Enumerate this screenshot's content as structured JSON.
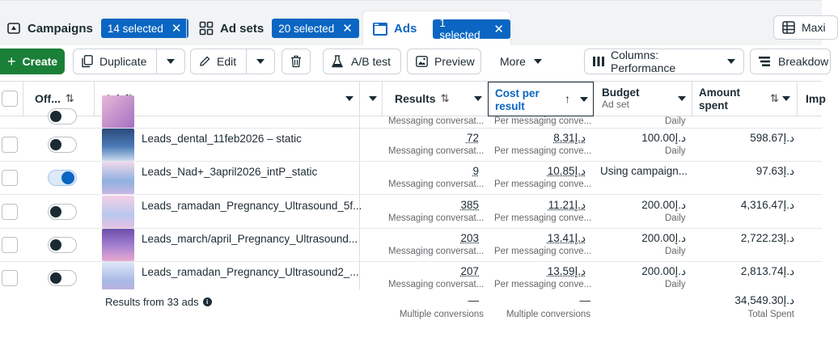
{
  "tabs": {
    "campaigns": {
      "label": "Campaigns",
      "pill": "14 selected"
    },
    "adsets": {
      "label": "Ad sets",
      "pill": "20 selected"
    },
    "ads": {
      "label": "Ads",
      "pill": "1 selected"
    },
    "maxi_label": "Maxi"
  },
  "toolbar": {
    "create": "Create",
    "duplicate": "Duplicate",
    "edit": "Edit",
    "ab_test": "A/B test",
    "preview": "Preview",
    "more": "More",
    "columns": "Columns: Performance",
    "breakdown": "Breakdow"
  },
  "columns": {
    "off": "Off...",
    "ad": "Ad",
    "results": "Results",
    "cost_per_result": "Cost per result",
    "budget": "Budget",
    "budget_sub": "Ad set",
    "amount_spent": "Amount spent",
    "imp": "Imp"
  },
  "partial_row": {
    "results_sub": "Messaging conversat...",
    "cost_sub": "Per messaging conve...",
    "budget_sub": "Daily"
  },
  "rows": [
    {
      "name": "Leads_dental_11feb2026 – static",
      "on": false,
      "results": "72",
      "results_sub": "Messaging conversat...",
      "cost": "د.إ8.31",
      "cost_sub": "Per messaging conve...",
      "budget": "د.إ100.00",
      "budget_sub": "Daily",
      "spent": "د.إ598.67"
    },
    {
      "name": "Leads_Nad+_3april2026_intP_static",
      "on": true,
      "results": "9",
      "results_sub": "Messaging conversat...",
      "cost": "د.إ10.85",
      "cost_sub": "Per messaging conve...",
      "budget": "Using campaign...",
      "budget_sub": "",
      "spent": "د.إ97.63"
    },
    {
      "name": "Leads_ramadan_Pregnancy_Ultrasound_5f...",
      "on": false,
      "results": "385",
      "results_sub": "Messaging conversat...",
      "cost": "د.إ11.21",
      "cost_sub": "Per messaging conve...",
      "budget": "د.إ200.00",
      "budget_sub": "Daily",
      "spent": "د.إ4,316.47"
    },
    {
      "name": "Leads_march/april_Pregnancy_Ultrasound...",
      "on": false,
      "results": "203",
      "results_sub": "Messaging conversat...",
      "cost": "د.إ13.41",
      "cost_sub": "Per messaging conve...",
      "budget": "د.إ200.00",
      "budget_sub": "Daily",
      "spent": "د.إ2,722.23"
    },
    {
      "name": "Leads_ramadan_Pregnancy_Ultrasound2_...",
      "on": false,
      "results": "207",
      "results_sub": "Messaging conversat...",
      "cost": "د.إ13.59",
      "cost_sub": "Per messaging conve...",
      "budget": "د.إ200.00",
      "budget_sub": "Daily",
      "spent": "د.إ2,813.74"
    }
  ],
  "footer": {
    "label": "Results from 33 ads",
    "results_dash": "—",
    "results_sub": "Multiple conversions",
    "cost_dash": "—",
    "cost_sub": "Multiple conversions",
    "spent": "د.إ34,549.30",
    "spent_sub": "Total Spent"
  },
  "colors": {
    "accent": "#0a66c2",
    "create": "#1a7f37"
  }
}
